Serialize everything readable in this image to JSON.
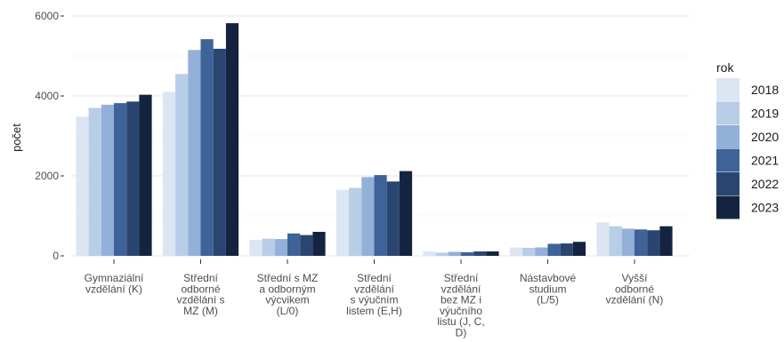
{
  "chart_data": {
    "type": "bar",
    "xlabel": "",
    "ylabel": "počet",
    "ylim": [
      0,
      6000
    ],
    "yticks": [
      0,
      2000,
      4000,
      6000
    ],
    "grid": true,
    "legend_title": "rok",
    "legend_position": "right",
    "categories": [
      [
        "Gymnaziální",
        "vzdělání (K)"
      ],
      [
        "Střední",
        "odborné",
        "vzdělání s",
        "MZ (M)"
      ],
      [
        "Střední s MZ",
        "a odborným",
        "výcvikem",
        "(L/0)"
      ],
      [
        "Střední",
        "vzdělání",
        "s výučním",
        "listem (E,H)"
      ],
      [
        "Střední",
        "vzdělání",
        "bez MZ i",
        "výučního",
        "listu (J, C,",
        "D)"
      ],
      [
        "Nástavbové",
        "studium",
        "(L/5)"
      ],
      [
        "Vyšší",
        "odborné",
        "vzdělání (N)"
      ]
    ],
    "series": [
      {
        "name": "2018",
        "color": "#dce6f2",
        "values": [
          3480,
          4100,
          400,
          1650,
          110,
          210,
          840
        ]
      },
      {
        "name": "2019",
        "color": "#b8cde6",
        "values": [
          3700,
          4550,
          430,
          1700,
          80,
          200,
          740
        ]
      },
      {
        "name": "2020",
        "color": "#93b0d8",
        "values": [
          3780,
          5150,
          420,
          1970,
          100,
          210,
          680
        ]
      },
      {
        "name": "2021",
        "color": "#3d6399",
        "values": [
          3820,
          5420,
          560,
          2020,
          90,
          300,
          660
        ]
      },
      {
        "name": "2022",
        "color": "#2a4670",
        "values": [
          3860,
          5180,
          520,
          1860,
          110,
          310,
          640
        ]
      },
      {
        "name": "2023",
        "color": "#142440",
        "values": [
          4030,
          5820,
          600,
          2120,
          110,
          350,
          740
        ]
      }
    ]
  }
}
